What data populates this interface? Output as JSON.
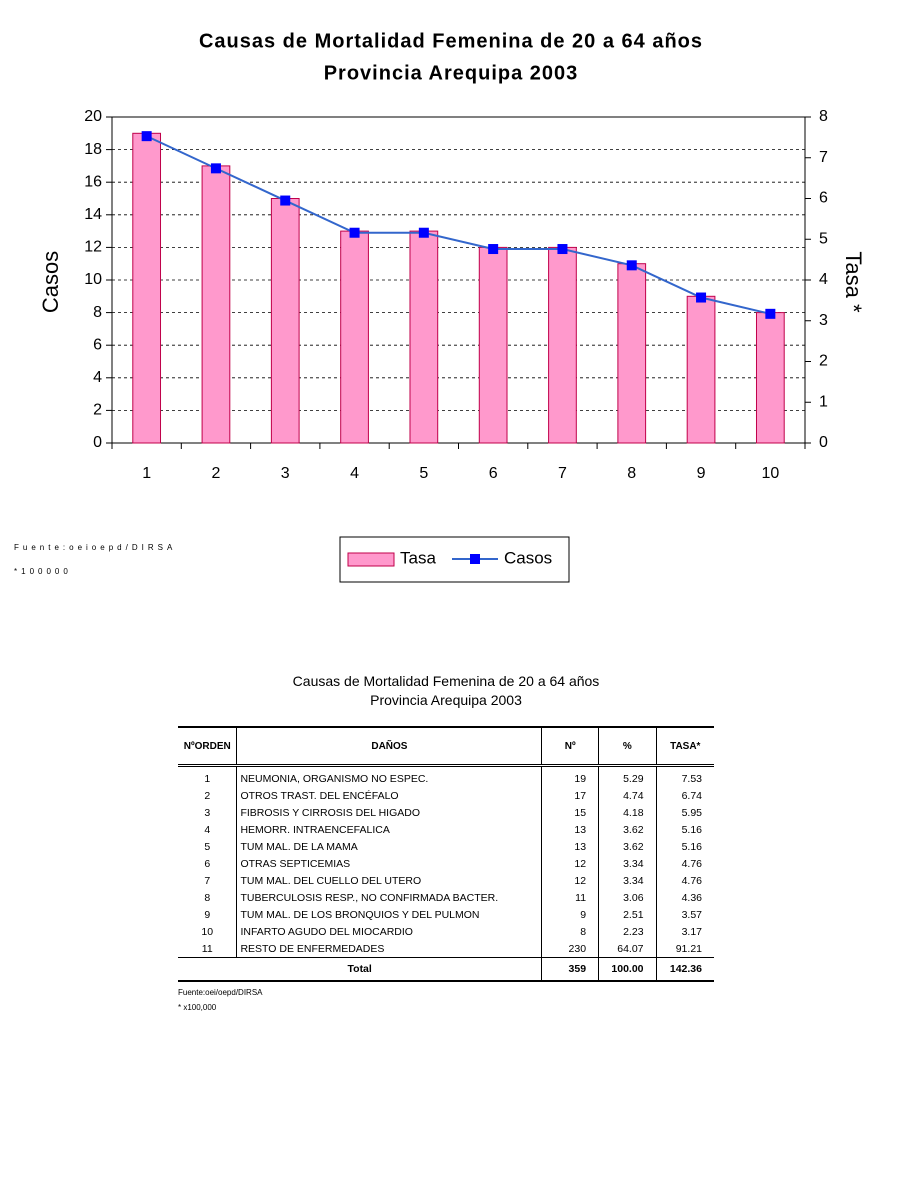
{
  "chart_data": {
    "type": "bar-line",
    "title": [
      "Causas de Mortalidad Femenina de 20 a 64 años",
      "Provincia Arequipa 2003"
    ],
    "y_label": "Casos",
    "y2_label": "Tasa *",
    "categories": [
      "1",
      "2",
      "3",
      "4",
      "5",
      "6",
      "7",
      "8",
      "9",
      "10"
    ],
    "series": [
      {
        "name": "Tasa",
        "type": "bar",
        "color": "#ff99cc",
        "values": [
          19,
          17,
          15,
          13,
          13,
          12,
          12,
          11,
          9,
          8
        ]
      },
      {
        "name": "Casos",
        "type": "line",
        "axis": "y2",
        "color": "#0000ff",
        "values": [
          7.53,
          6.74,
          5.95,
          5.16,
          5.16,
          4.76,
          4.76,
          4.36,
          3.57,
          3.17
        ]
      }
    ],
    "ylim": [
      0,
      20
    ],
    "yticks": [
      0,
      2,
      4,
      6,
      8,
      10,
      12,
      14,
      16,
      18,
      20
    ],
    "y2lim": [
      0,
      8
    ],
    "y2ticks": [
      0,
      1,
      2,
      3,
      4,
      5,
      6,
      7,
      8
    ],
    "grid": true,
    "legend": "bottom",
    "notes": [
      "Fuente:oeioepd/DIRSA",
      "*100000"
    ]
  },
  "table": {
    "title": [
      "Causas de Mortalidad Femenina de 20 a 64 años",
      "Provincia Arequipa 2003"
    ],
    "header": [
      "NºORDEN",
      "DAÑOS",
      "Nº",
      "%",
      "TASA*"
    ],
    "rows": [
      [
        "1",
        "NEUMONIA, ORGANISMO NO ESPEC.",
        "19",
        "5.29",
        "7.53"
      ],
      [
        "2",
        "OTROS TRAST. DEL ENCÉFALO",
        "17",
        "4.74",
        "6.74"
      ],
      [
        "3",
        "FIBROSIS Y CIRROSIS DEL HIGADO",
        "15",
        "4.18",
        "5.95"
      ],
      [
        "4",
        "HEMORR. INTRAENCEFALICA",
        "13",
        "3.62",
        "5.16"
      ],
      [
        "5",
        "TUM MAL. DE LA MAMA",
        "13",
        "3.62",
        "5.16"
      ],
      [
        "6",
        "OTRAS SEPTICEMIAS",
        "12",
        "3.34",
        "4.76"
      ],
      [
        "7",
        "TUM MAL. DEL CUELLO DEL UTERO",
        "12",
        "3.34",
        "4.76"
      ],
      [
        "8",
        "TUBERCULOSIS RESP., NO CONFIRMADA BACTER.",
        "11",
        "3.06",
        "4.36"
      ],
      [
        "9",
        "TUM MAL. DE LOS BRONQUIOS Y DEL PULMON",
        "9",
        "2.51",
        "3.57"
      ],
      [
        "10",
        "INFARTO AGUDO DEL MIOCARDIO",
        "8",
        "2.23",
        "3.17"
      ],
      [
        "11",
        "RESTO DE ENFERMEDADES",
        "230",
        "64.07",
        "91.21"
      ]
    ],
    "total": [
      "Total",
      "359",
      "100.00",
      "142.36"
    ],
    "notes": [
      "Fuente:oei/oepd/DIRSA",
      "* x100,000"
    ]
  }
}
